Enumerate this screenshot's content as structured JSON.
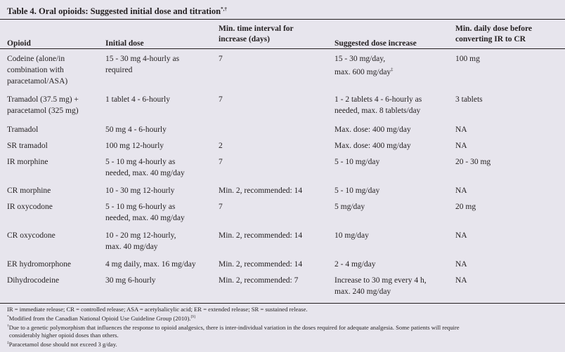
{
  "title": "Table 4. Oral opioids: Suggested initial dose and titration",
  "title_marks": "*,†",
  "headers": [
    [
      "Opioid"
    ],
    [
      "Initial dose"
    ],
    [
      "Min. time interval for",
      "increase (days)"
    ],
    [
      "Suggested dose increase"
    ],
    [
      "Min. daily dose before",
      "converting IR to CR"
    ]
  ],
  "rows": [
    {
      "opioid": [
        "Codeine (alone/in",
        "combination with",
        "paracetamol/ASA)"
      ],
      "initial": [
        "15 - 30 mg 4-hourly as",
        "required"
      ],
      "interval": [
        "7"
      ],
      "increase": [
        "15 - 30 mg/day,",
        "max. 600 mg/day"
      ],
      "increase_mark": "‡",
      "min": [
        "100 mg"
      ]
    },
    {
      "opioid": [
        "Tramadol (37.5 mg) +",
        "paracetamol (325 mg)"
      ],
      "initial": [
        "1 tablet 4 - 6-hourly"
      ],
      "interval": [
        "7"
      ],
      "increase": [
        "1 - 2 tablets 4 - 6-hourly as",
        "needed, max. 8 tablets/day"
      ],
      "min": [
        "3 tablets"
      ]
    },
    {
      "opioid": [
        "Tramadol"
      ],
      "initial": [
        "50 mg 4 - 6-hourly"
      ],
      "interval": [
        ""
      ],
      "increase": [
        "Max. dose: 400 mg/day"
      ],
      "min": [
        "NA"
      ]
    },
    {
      "opioid": [
        "SR tramadol"
      ],
      "initial": [
        "100 mg 12-hourly"
      ],
      "interval": [
        "2"
      ],
      "increase": [
        "Max. dose: 400 mg/day"
      ],
      "min": [
        "NA"
      ]
    },
    {
      "opioid": [
        "IR morphine"
      ],
      "initial": [
        "5 - 10 mg 4-hourly as",
        "needed, max. 40 mg/day"
      ],
      "interval": [
        "7"
      ],
      "increase": [
        "5 - 10 mg/day"
      ],
      "min": [
        "20 - 30 mg"
      ]
    },
    {
      "opioid": [
        "CR morphine"
      ],
      "initial": [
        "10 - 30 mg 12-hourly"
      ],
      "interval": [
        "Min. 2, recommended: 14"
      ],
      "increase": [
        "5 - 10 mg/day"
      ],
      "min": [
        "NA"
      ]
    },
    {
      "opioid": [
        "IR oxycodone"
      ],
      "initial": [
        "5 - 10 mg 6-hourly as",
        "needed, max. 40 mg/day"
      ],
      "interval": [
        "7"
      ],
      "increase": [
        "5 mg/day"
      ],
      "min": [
        "20 mg"
      ]
    },
    {
      "opioid": [
        "CR oxycodone"
      ],
      "initial": [
        "10 - 20 mg 12-hourly,",
        "max. 40 mg/day"
      ],
      "interval": [
        "Min. 2, recommended: 14"
      ],
      "increase": [
        "10 mg/day"
      ],
      "min": [
        "NA"
      ]
    },
    {
      "opioid": [
        "ER hydromorphone"
      ],
      "initial": [
        "4 mg daily, max. 16 mg/day"
      ],
      "interval": [
        "Min. 2, recommended: 14"
      ],
      "increase": [
        "2 - 4 mg/day"
      ],
      "min": [
        "NA"
      ]
    },
    {
      "opioid": [
        "Dihydrocodeine"
      ],
      "initial": [
        "30 mg 6-hourly"
      ],
      "interval": [
        "Min. 2, recommended: 7"
      ],
      "increase": [
        "Increase to 30 mg every 4 h,",
        "max. 240 mg/day"
      ],
      "min": [
        "NA"
      ]
    }
  ],
  "footnotes": {
    "abbreviations": "IR = immediate release; CR = controlled release; ASA = acetylsalicylic acid; ER = extended release; SR = sustained release.",
    "source_mark": "*",
    "source": "Modified from the Canadian National Opioid Use Guideline Group (2010).",
    "source_ref": "[9]",
    "variation_mark": "†",
    "variation_1": "Due to a genetic polymorphism that influences the response to opioid analgesics, there is inter-individual variation in the doses required for adequate analgesia. Some patients will require",
    "variation_2": "considerably higher opioid doses than others.",
    "paracetamol_mark": "‡",
    "paracetamol": "Paracetamol dose should not exceed 3 g/day."
  }
}
